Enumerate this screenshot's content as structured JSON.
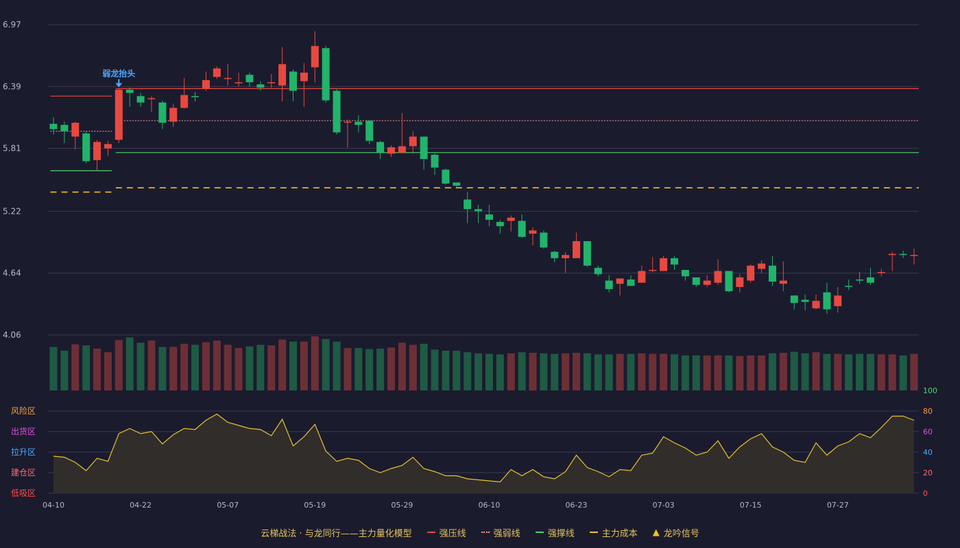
{
  "colors": {
    "background": "#1b1b2e",
    "up": "#e8493f",
    "down": "#21b46b",
    "vol_up": "#6d2f36",
    "vol_down": "#1e5a44",
    "resistance": "#e8493f",
    "weak": "#ff9aa4",
    "support": "#4cd964",
    "cost": "#f2c21b",
    "indicator_line": "#e8c42e",
    "indicator_fill": "#34302a",
    "signal": "#4aa8ff"
  },
  "chart_data": {
    "type": "candlestick",
    "price_axis": {
      "ticks": [
        "6.97",
        "6.39",
        "5.81",
        "5.22",
        "4.64",
        "4.06"
      ],
      "ylim": [
        4.06,
        6.97
      ]
    },
    "x_tick_labels": [
      {
        "i": 0,
        "label": "04-10"
      },
      {
        "i": 8,
        "label": "04-22"
      },
      {
        "i": 16,
        "label": "05-07"
      },
      {
        "i": 24,
        "label": "05-19"
      },
      {
        "i": 32,
        "label": "05-29"
      },
      {
        "i": 40,
        "label": "06-10"
      },
      {
        "i": 48,
        "label": "06-23"
      },
      {
        "i": 56,
        "label": "07-03"
      },
      {
        "i": 64,
        "label": "07-15"
      },
      {
        "i": 72,
        "label": "07-27"
      }
    ],
    "candles": [
      [
        6.04,
        5.99,
        6.1,
        5.94
      ],
      [
        6.03,
        5.97,
        6.06,
        5.86
      ],
      [
        5.92,
        6.05,
        6.06,
        5.8
      ],
      [
        5.95,
        5.69,
        5.97,
        5.67
      ],
      [
        5.7,
        5.87,
        5.89,
        5.6
      ],
      [
        5.81,
        5.85,
        5.88,
        5.74
      ],
      [
        5.89,
        6.36,
        6.37,
        5.86
      ],
      [
        6.36,
        6.33,
        6.38,
        6.2
      ],
      [
        6.3,
        6.24,
        6.33,
        6.2
      ],
      [
        6.28,
        6.28,
        6.3,
        6.15
      ],
      [
        6.24,
        6.05,
        6.26,
        5.99
      ],
      [
        6.06,
        6.19,
        6.23,
        6.01
      ],
      [
        6.19,
        6.31,
        6.47,
        6.18
      ],
      [
        6.3,
        6.29,
        6.34,
        6.25
      ],
      [
        6.37,
        6.45,
        6.53,
        6.35
      ],
      [
        6.48,
        6.56,
        6.58,
        6.46
      ],
      [
        6.47,
        6.47,
        6.6,
        6.4
      ],
      [
        6.42,
        6.43,
        6.52,
        6.39
      ],
      [
        6.5,
        6.43,
        6.52,
        6.39
      ],
      [
        6.41,
        6.38,
        6.44,
        6.35
      ],
      [
        6.43,
        6.43,
        6.51,
        6.38
      ],
      [
        6.4,
        6.6,
        6.76,
        6.25
      ],
      [
        6.53,
        6.35,
        6.55,
        6.25
      ],
      [
        6.44,
        6.52,
        6.61,
        6.2
      ],
      [
        6.57,
        6.77,
        6.91,
        6.43
      ],
      [
        6.75,
        6.26,
        6.77,
        6.24
      ],
      [
        6.35,
        5.96,
        6.37,
        5.94
      ],
      [
        6.06,
        6.06,
        6.08,
        5.82
      ],
      [
        6.06,
        6.03,
        6.12,
        5.96
      ],
      [
        6.07,
        5.88,
        6.07,
        5.85
      ],
      [
        5.87,
        5.77,
        5.88,
        5.71
      ],
      [
        5.76,
        5.82,
        5.84,
        5.73
      ],
      [
        5.77,
        5.83,
        6.14,
        5.77
      ],
      [
        5.83,
        5.92,
        5.97,
        5.76
      ],
      [
        5.92,
        5.71,
        5.92,
        5.61
      ],
      [
        5.75,
        5.63,
        5.76,
        5.56
      ],
      [
        5.61,
        5.48,
        5.62,
        5.47
      ],
      [
        5.49,
        5.46,
        5.47,
        5.45
      ],
      [
        5.33,
        5.24,
        5.4,
        5.11
      ],
      [
        5.24,
        5.22,
        5.28,
        5.11
      ],
      [
        5.19,
        5.14,
        5.28,
        5.08
      ],
      [
        5.12,
        5.08,
        5.14,
        5.01
      ],
      [
        5.13,
        5.16,
        5.18,
        5.03
      ],
      [
        5.13,
        4.98,
        5.19,
        4.97
      ],
      [
        5.01,
        5.04,
        5.07,
        4.9
      ],
      [
        5.02,
        4.88,
        5.04,
        4.87
      ],
      [
        4.84,
        4.78,
        4.85,
        4.74
      ],
      [
        4.78,
        4.81,
        4.84,
        4.64
      ],
      [
        4.78,
        4.94,
        5.02,
        4.79
      ],
      [
        4.94,
        4.71,
        4.94,
        4.7
      ],
      [
        4.69,
        4.63,
        4.71,
        4.61
      ],
      [
        4.57,
        4.49,
        4.62,
        4.46
      ],
      [
        4.54,
        4.59,
        4.59,
        4.43
      ],
      [
        4.58,
        4.52,
        4.62,
        4.52
      ],
      [
        4.55,
        4.66,
        4.71,
        4.55
      ],
      [
        4.67,
        4.67,
        4.79,
        4.65
      ],
      [
        4.66,
        4.78,
        4.8,
        4.66
      ],
      [
        4.78,
        4.72,
        4.8,
        4.67
      ],
      [
        4.67,
        4.61,
        4.67,
        4.57
      ],
      [
        4.6,
        4.53,
        4.6,
        4.51
      ],
      [
        4.53,
        4.57,
        4.62,
        4.51
      ],
      [
        4.55,
        4.66,
        4.77,
        4.53
      ],
      [
        4.66,
        4.47,
        4.66,
        4.46
      ],
      [
        4.51,
        4.6,
        4.63,
        4.46
      ],
      [
        4.57,
        4.71,
        4.72,
        4.55
      ],
      [
        4.68,
        4.73,
        4.76,
        4.64
      ],
      [
        4.71,
        4.56,
        4.8,
        4.52
      ],
      [
        4.54,
        4.57,
        4.75,
        4.47
      ],
      [
        4.43,
        4.36,
        4.43,
        4.3
      ],
      [
        4.39,
        4.37,
        4.44,
        4.29
      ],
      [
        4.31,
        4.38,
        4.44,
        4.3
      ],
      [
        4.46,
        4.3,
        4.55,
        4.26
      ],
      [
        4.33,
        4.43,
        4.51,
        4.27
      ],
      [
        4.52,
        4.51,
        4.58,
        4.48
      ],
      [
        4.58,
        4.57,
        4.65,
        4.54
      ],
      [
        4.6,
        4.55,
        4.69,
        4.53
      ],
      [
        4.64,
        4.65,
        4.68,
        4.61
      ],
      [
        4.81,
        4.82,
        4.84,
        4.66
      ],
      [
        4.82,
        4.81,
        4.85,
        4.78
      ],
      [
        4.81,
        4.81,
        4.87,
        4.72
      ]
    ],
    "volume": [
      0.82,
      0.75,
      0.87,
      0.85,
      0.79,
      0.72,
      0.95,
      1.0,
      0.9,
      0.94,
      0.82,
      0.82,
      0.88,
      0.86,
      0.91,
      0.94,
      0.86,
      0.8,
      0.83,
      0.86,
      0.85,
      0.96,
      0.92,
      0.92,
      1.02,
      0.97,
      0.92,
      0.8,
      0.8,
      0.78,
      0.79,
      0.81,
      0.9,
      0.86,
      0.88,
      0.77,
      0.75,
      0.75,
      0.72,
      0.7,
      0.69,
      0.68,
      0.7,
      0.72,
      0.71,
      0.7,
      0.69,
      0.7,
      0.71,
      0.7,
      0.68,
      0.68,
      0.69,
      0.69,
      0.7,
      0.69,
      0.69,
      0.68,
      0.66,
      0.66,
      0.66,
      0.66,
      0.66,
      0.65,
      0.66,
      0.66,
      0.7,
      0.71,
      0.73,
      0.7,
      0.72,
      0.69,
      0.69,
      0.68,
      0.69,
      0.69,
      0.68,
      0.68,
      0.66,
      0.69
    ],
    "levels": {
      "resistance": [
        {
          "from": 0,
          "to": 5,
          "price": 6.3
        },
        {
          "from": 6,
          "to": 79,
          "price": 6.37
        }
      ],
      "weak": [
        {
          "from": 0,
          "to": 5,
          "price": 5.97
        },
        {
          "from": 6,
          "to": 79,
          "price": 6.07
        }
      ],
      "support": [
        {
          "from": 0,
          "to": 5,
          "price": 5.6
        },
        {
          "from": 6,
          "to": 79,
          "price": 5.77
        }
      ],
      "cost": [
        {
          "from": 0,
          "to": 5,
          "price": 5.4
        },
        {
          "from": 6,
          "to": 79,
          "price": 5.44
        }
      ]
    },
    "signal": {
      "index": 6,
      "label": "弱龙抬头"
    },
    "indicator": {
      "ylim": [
        0,
        100
      ],
      "right_ticks": [
        {
          "value": 100,
          "label": "100",
          "color": "#4cd964"
        },
        {
          "value": 80,
          "label": "80",
          "color": "#f2a13a"
        },
        {
          "value": 60,
          "label": "60",
          "color": "#e04fd8"
        },
        {
          "value": 40,
          "label": "40",
          "color": "#4aa8ff"
        },
        {
          "value": 20,
          "label": "20",
          "color": "#ff6b6b"
        },
        {
          "value": 0,
          "label": "0",
          "color": "#ff4d4d"
        }
      ],
      "left_zones": [
        {
          "value": 80,
          "label": "风险区",
          "color": "#f2a13a"
        },
        {
          "value": 60,
          "label": "出货区",
          "color": "#e04fd8"
        },
        {
          "value": 40,
          "label": "拉升区",
          "color": "#4aa8ff"
        },
        {
          "value": 20,
          "label": "建仓区",
          "color": "#ff6b6b"
        },
        {
          "value": 0,
          "label": "低吸区",
          "color": "#ff4d4d"
        }
      ],
      "values": [
        36,
        35,
        30,
        22,
        34,
        31,
        58,
        63,
        58,
        60,
        48,
        57,
        63,
        62,
        71,
        77,
        69,
        66,
        63,
        62,
        56,
        72,
        46,
        55,
        67,
        41,
        31,
        34,
        32,
        24,
        20,
        24,
        27,
        35,
        24,
        21,
        17,
        17,
        14,
        13,
        12,
        11,
        23,
        17,
        23,
        16,
        14,
        21,
        37,
        25,
        21,
        16,
        23,
        22,
        37,
        39,
        55,
        49,
        44,
        37,
        40,
        51,
        34,
        45,
        53,
        58,
        45,
        40,
        32,
        30,
        49,
        37,
        46,
        50,
        58,
        54,
        64,
        75,
        75,
        71
      ]
    }
  },
  "legend": {
    "title": "云梯战法 · 与龙同行——主力量化模型",
    "items": [
      {
        "label": "强压线",
        "kind": "solid",
        "color": "#e8493f"
      },
      {
        "label": "强弱线",
        "kind": "dotted",
        "color": "#ff9aa4"
      },
      {
        "label": "强撑线",
        "kind": "solid",
        "color": "#4cd964"
      },
      {
        "label": "主力成本",
        "kind": "dashed",
        "color": "#f2c21b"
      },
      {
        "label": "龙吟信号",
        "kind": "triangle",
        "color": "#f2c21b"
      }
    ]
  }
}
